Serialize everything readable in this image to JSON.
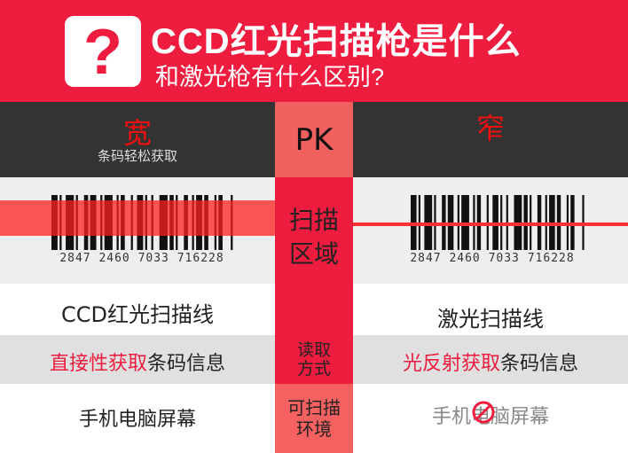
{
  "header": {
    "icon": "question-mark-icon",
    "icon_glyph": "?",
    "title": "CCD红光扫描枪是什么",
    "subtitle": "和激光枪有什么区别?"
  },
  "colors": {
    "brand_red": "#ee1c3e",
    "dark": "#333333",
    "pink": "#f56060"
  },
  "left": {
    "heading": "宽",
    "subheading": "条码轻松获取",
    "barcode_digits": "2847 2460 7033 716228",
    "scan_line": "CCD红光扫描线",
    "read_red": "直接性获取",
    "read_rest": "条码信息",
    "env": "手机电脑屏幕"
  },
  "center": {
    "pk": "PK",
    "scan_area": "扫描区域",
    "read_mode": "读取方式",
    "env": "可扫描环境"
  },
  "right": {
    "heading": "窄",
    "barcode_digits": "2847 2460 7033 716228",
    "scan_line": "激光扫描线",
    "read_red": "光反射获取",
    "read_rest": "条码信息",
    "env": "手机电脑屏幕",
    "env_icon": "prohibited-icon"
  }
}
